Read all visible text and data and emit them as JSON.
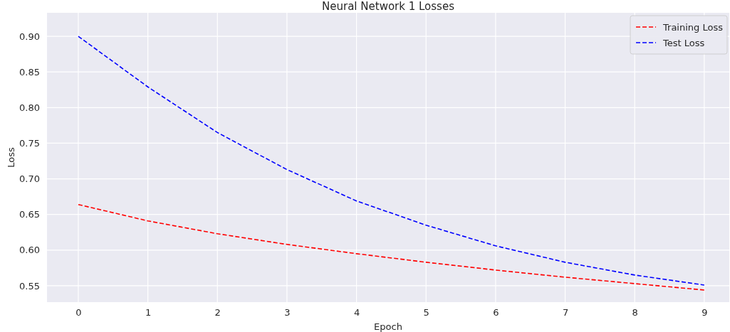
{
  "chart_data": {
    "type": "line",
    "title": "Neural Network 1 Losses",
    "xlabel": "Epoch",
    "ylabel": "Loss",
    "x": [
      0,
      1,
      2,
      3,
      4,
      5,
      6,
      7,
      8,
      9
    ],
    "series": [
      {
        "name": "Training Loss",
        "color": "#ff0000",
        "values": [
          0.664,
          0.641,
          0.623,
          0.608,
          0.595,
          0.583,
          0.572,
          0.562,
          0.553,
          0.544
        ]
      },
      {
        "name": "Test Loss",
        "color": "#0000ff",
        "values": [
          0.9,
          0.829,
          0.765,
          0.713,
          0.669,
          0.635,
          0.606,
          0.583,
          0.565,
          0.551
        ]
      }
    ],
    "xlim": [
      -0.45,
      9.36
    ],
    "xticks": [
      0,
      1,
      2,
      3,
      4,
      5,
      6,
      7,
      8,
      9
    ],
    "ylim": [
      0.527,
      0.933
    ],
    "yticks": [
      0.55,
      {
        "value": 0.6,
        "label": "0.60"
      },
      0.65,
      {
        "value": 0.7,
        "label": "0.70"
      },
      0.75,
      {
        "value": 0.8,
        "label": "0.80"
      },
      0.85,
      {
        "value": 0.9,
        "label": "0.90"
      }
    ],
    "grid": true,
    "legend": "top right",
    "marker": "none",
    "line_style": "dashed"
  }
}
